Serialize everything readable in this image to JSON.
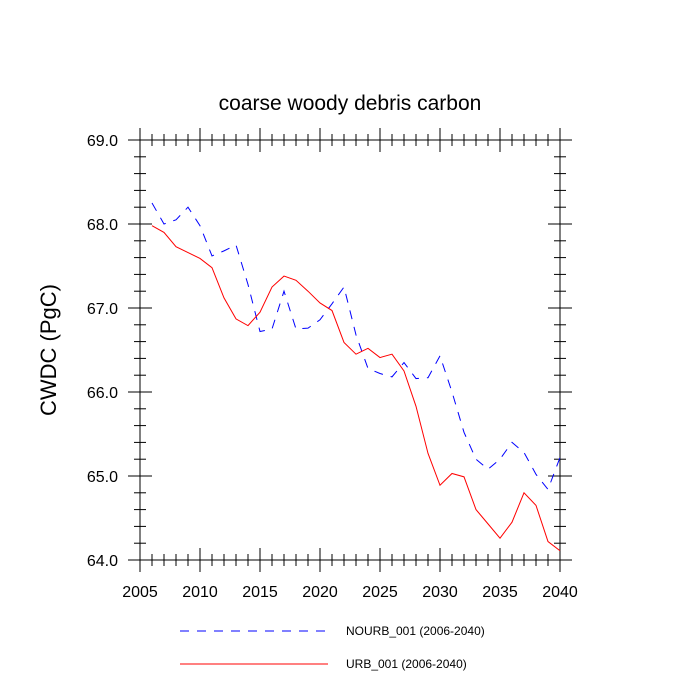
{
  "chart_data": {
    "type": "line",
    "title": "coarse woody debris carbon",
    "xlabel": "",
    "ylabel": "CWDC  (PgC)",
    "xlim": [
      2005,
      2040
    ],
    "ylim": [
      64.0,
      69.0
    ],
    "x_ticks": [
      2005,
      2010,
      2015,
      2020,
      2025,
      2030,
      2035,
      2040
    ],
    "x_tick_labels": [
      "2005",
      "2010",
      "2015",
      "2020",
      "2025",
      "2030",
      "2035",
      "2040"
    ],
    "y_ticks": [
      64.0,
      65.0,
      66.0,
      67.0,
      68.0,
      69.0
    ],
    "y_tick_labels": [
      "64.0",
      "65.0",
      "66.0",
      "67.0",
      "68.0",
      "69.0"
    ],
    "x": [
      2006,
      2007,
      2008,
      2009,
      2010,
      2011,
      2012,
      2013,
      2014,
      2015,
      2016,
      2017,
      2018,
      2019,
      2020,
      2021,
      2022,
      2023,
      2024,
      2025,
      2026,
      2027,
      2028,
      2029,
      2030,
      2031,
      2032,
      2033,
      2034,
      2035,
      2036,
      2037,
      2038,
      2039,
      2040
    ],
    "series": [
      {
        "name": "NOURB_001 (2006-2040)",
        "color": "#0000ff",
        "dash": "dashed",
        "values": [
          68.25,
          68.0,
          68.05,
          68.2,
          67.98,
          67.62,
          67.68,
          67.75,
          67.28,
          66.72,
          66.75,
          67.2,
          66.75,
          66.76,
          66.86,
          67.05,
          67.25,
          66.68,
          66.28,
          66.22,
          66.18,
          66.35,
          66.16,
          66.17,
          66.43,
          66.0,
          65.52,
          65.2,
          65.08,
          65.2,
          65.4,
          65.28,
          65.02,
          64.84,
          65.22
        ]
      },
      {
        "name": "URB_001 (2006-2040)",
        "color": "#ff0000",
        "dash": "solid",
        "values": [
          67.98,
          67.9,
          67.73,
          67.66,
          67.59,
          67.48,
          67.12,
          66.87,
          66.79,
          66.95,
          67.25,
          67.38,
          67.33,
          67.2,
          67.06,
          66.97,
          66.59,
          66.45,
          66.52,
          66.41,
          66.45,
          66.25,
          65.83,
          65.27,
          64.89,
          65.03,
          64.99,
          64.6,
          64.43,
          64.26,
          64.45,
          64.8,
          64.65,
          64.22,
          64.11
        ]
      }
    ],
    "legend": [
      {
        "label": "NOURB_001 (2006-2040)",
        "color": "#0000ff",
        "dash": "dashed"
      },
      {
        "label": "URB_001 (2006-2040)",
        "color": "#ff0000",
        "dash": "solid"
      }
    ],
    "legend_position": "bottom",
    "grid": false
  }
}
